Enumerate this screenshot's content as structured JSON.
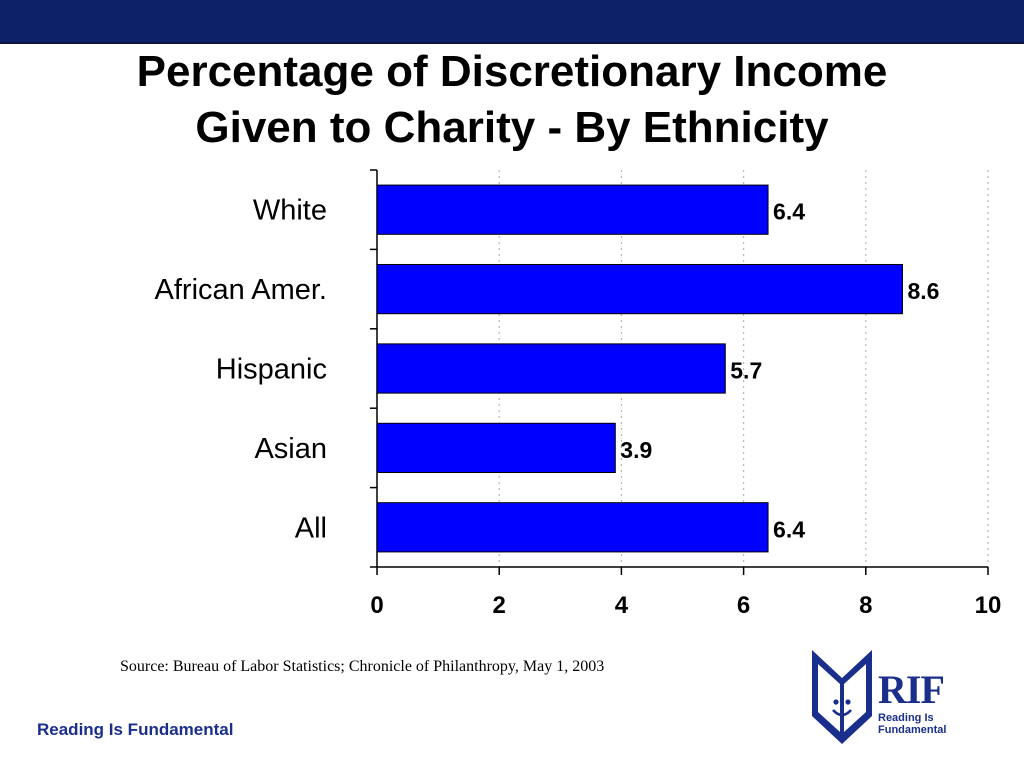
{
  "slide": {
    "title_line1": "Percentage of Discretionary Income",
    "title_line2": "Given to Charity - By Ethnicity",
    "source": "Source:  Bureau of Labor Statistics; Chronicle of Philanthropy, May 1, 2003",
    "footer": "Reading Is Fundamental",
    "logo": {
      "big": "RIF",
      "line1": "Reading Is",
      "line2": "Fundamental"
    }
  },
  "colors": {
    "band": "#0d2169",
    "bar": "#0000ff",
    "brand": "#1a2f8c"
  },
  "chart_data": {
    "type": "bar",
    "orientation": "horizontal",
    "categories": [
      "White",
      "African Amer.",
      "Hispanic",
      "Asian",
      "All"
    ],
    "values": [
      6.4,
      8.6,
      5.7,
      3.9,
      6.4
    ],
    "value_labels": [
      "6.4",
      "8.6",
      "5.7",
      "3.9",
      "6.4"
    ],
    "xlim": [
      0,
      10
    ],
    "xticks": [
      "0",
      "2",
      "4",
      "6",
      "8",
      "10"
    ],
    "grid": "vertical dotted",
    "legend": "none"
  }
}
